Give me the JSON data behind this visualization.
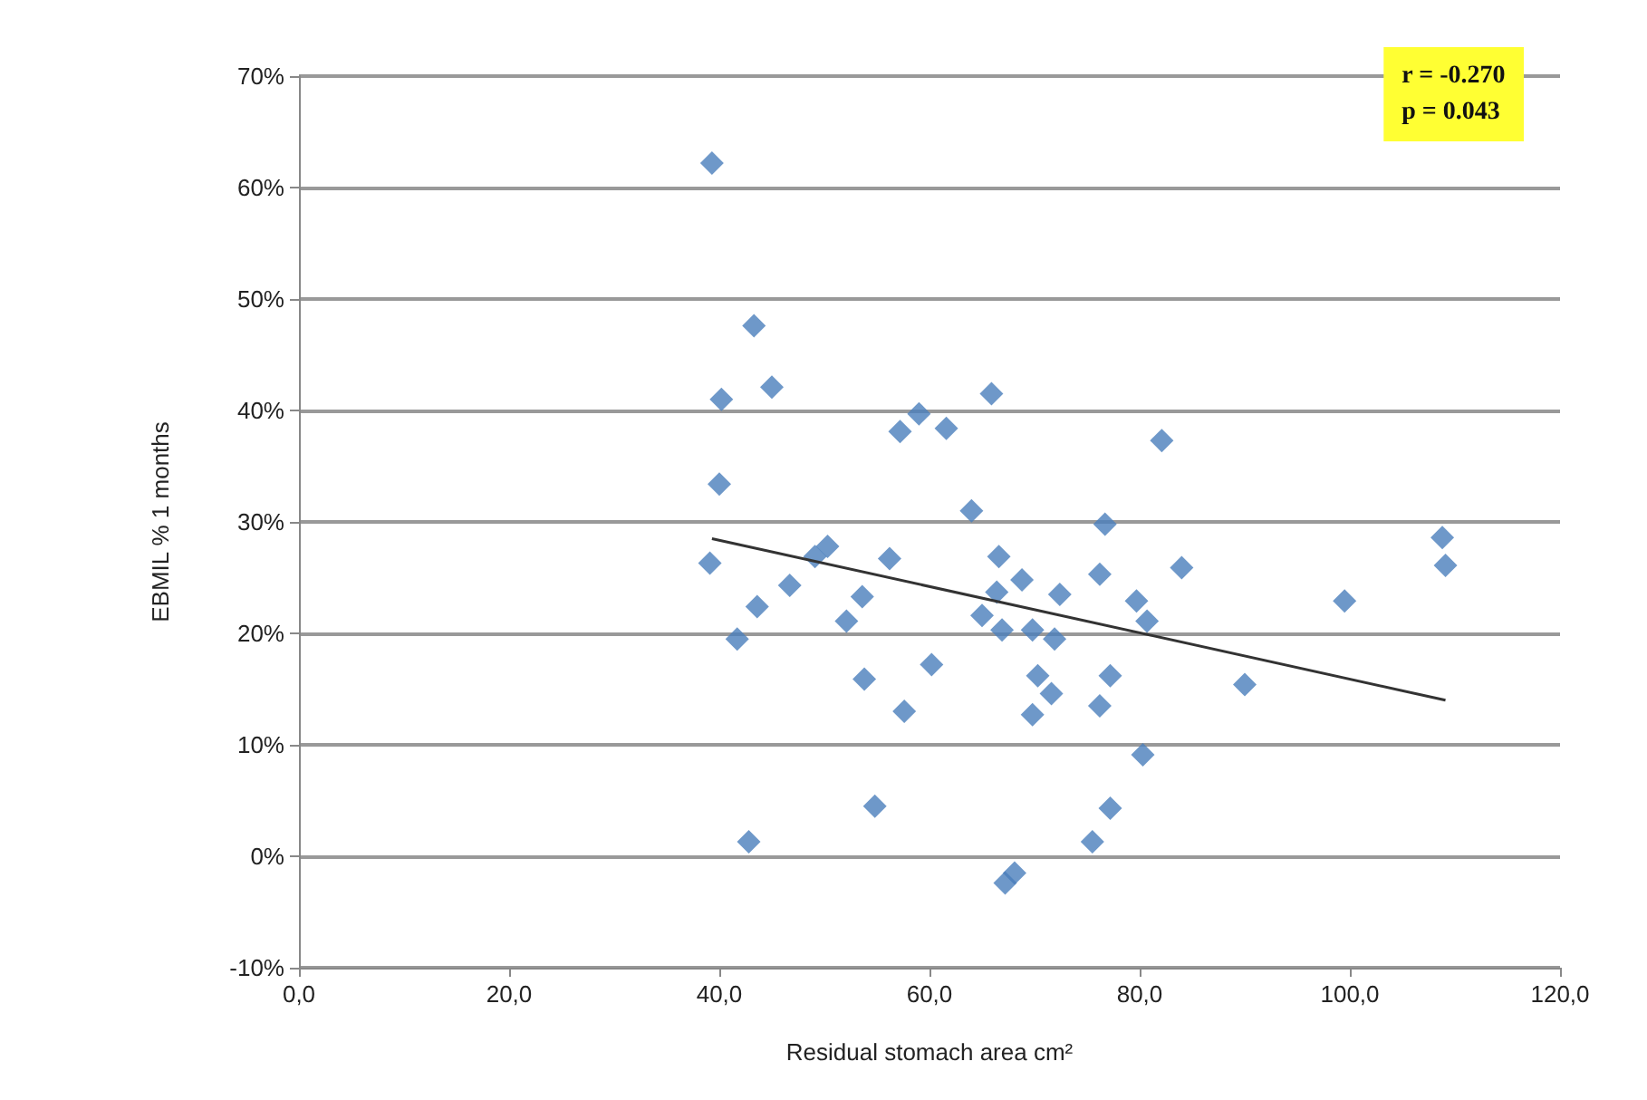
{
  "chart_data": {
    "type": "scatter",
    "xlabel": "Residual stomach area cm²",
    "ylabel": "EBMIL % 1 months",
    "annotations": [
      "r = -0.270",
      "p = 0.043"
    ],
    "xlim": [
      0,
      120
    ],
    "xticks": [
      {
        "value": 0,
        "label": "0,0"
      },
      {
        "value": 20,
        "label": "20,0"
      },
      {
        "value": 40,
        "label": "40,0"
      },
      {
        "value": 60,
        "label": "60,0"
      },
      {
        "value": 80,
        "label": "80,0"
      },
      {
        "value": 100,
        "label": "100,0"
      },
      {
        "value": 120,
        "label": "120,0"
      }
    ],
    "ylim": [
      -10,
      70
    ],
    "yticks": [
      {
        "value": -10,
        "label": "-10%"
      },
      {
        "value": 0,
        "label": "0%"
      },
      {
        "value": 10,
        "label": "10%"
      },
      {
        "value": 20,
        "label": "20%"
      },
      {
        "value": 30,
        "label": "30%"
      },
      {
        "value": 40,
        "label": "40%"
      },
      {
        "value": 50,
        "label": "50%"
      },
      {
        "value": 60,
        "label": "60%"
      },
      {
        "value": 70,
        "label": "70%"
      }
    ],
    "grid": "y",
    "series": [
      {
        "color": "#4a7ebb",
        "marker": "diamond",
        "x": [
          39.3,
          43.3,
          40.2,
          45.0,
          57.2,
          59.0,
          61.6,
          65.9,
          40.0,
          64.0,
          76.7,
          39.1,
          50.3,
          49.1,
          56.2,
          41.7,
          43.6,
          46.7,
          53.6,
          52.1,
          53.8,
          60.2,
          57.6,
          54.8,
          42.8,
          66.6,
          68.8,
          66.4,
          65.0,
          66.9,
          69.8,
          71.9,
          72.4,
          76.2,
          70.3,
          71.6,
          69.8,
          76.2,
          77.2,
          77.2,
          75.5,
          68.1,
          67.2,
          82.1,
          84.0,
          79.7,
          80.7,
          99.5,
          108.8,
          109.1,
          90.0,
          80.3
        ],
        "values": [
          62.2,
          47.6,
          41.0,
          42.1,
          38.1,
          39.7,
          38.4,
          41.5,
          33.4,
          31.0,
          29.8,
          26.3,
          27.8,
          26.9,
          26.7,
          19.5,
          22.4,
          24.3,
          23.3,
          21.1,
          15.9,
          17.2,
          13.0,
          4.5,
          1.3,
          26.9,
          24.8,
          23.7,
          21.6,
          20.3,
          20.3,
          19.5,
          23.5,
          25.3,
          16.2,
          14.6,
          12.7,
          13.5,
          16.2,
          4.3,
          1.3,
          -1.5,
          -2.4,
          37.3,
          25.9,
          22.9,
          21.1,
          22.9,
          28.6,
          26.1,
          15.4,
          9.1
        ]
      },
      {
        "type": "line",
        "color": "#333333",
        "marker": "none",
        "line_style": "solid",
        "x": [
          39.3,
          109.1
        ],
        "values": [
          28.5,
          14.0
        ]
      }
    ]
  }
}
